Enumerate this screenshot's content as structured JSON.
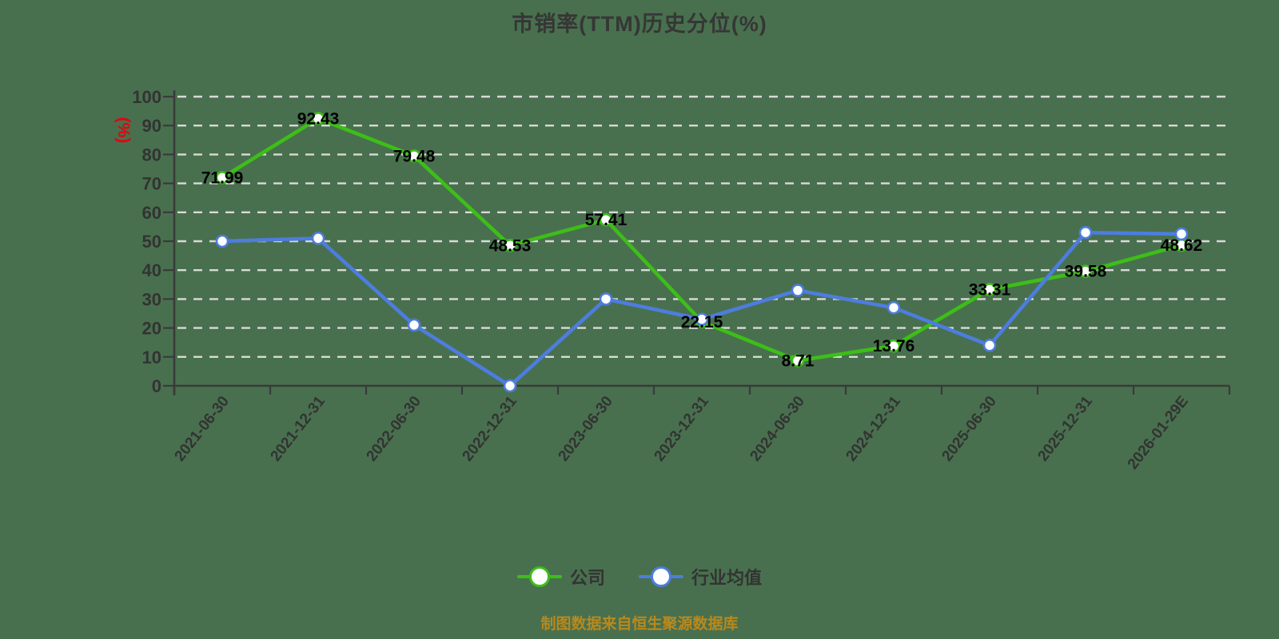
{
  "page": {
    "background": "#48704E"
  },
  "chart_data": {
    "type": "line",
    "title": "市销率(TTM)历史分位(%)",
    "ylabel": "(%)",
    "ylabel_color": "#e8000d",
    "footer": "制图数据来自恒生聚源数据库",
    "footer_color": "#b9891c",
    "categories": [
      "2021-06-30",
      "2021-12-31",
      "2022-06-30",
      "2022-12-31",
      "2023-06-30",
      "2023-12-31",
      "2024-06-30",
      "2024-12-31",
      "2025-06-30",
      "2025-12-31",
      "2026-01-29E"
    ],
    "series": [
      {
        "name": "公司",
        "color": "#3dbe18",
        "show_labels": true,
        "values": [
          71.99,
          92.43,
          79.48,
          48.53,
          57.41,
          22.15,
          8.71,
          13.76,
          33.31,
          39.58,
          48.62
        ]
      },
      {
        "name": "行业均值",
        "color": "#4d7dde",
        "show_labels": false,
        "values": [
          50,
          51,
          21,
          0,
          30,
          23,
          33,
          27,
          14,
          53,
          52.5
        ]
      }
    ],
    "ylim": [
      0,
      100
    ],
    "ytick_step": 10,
    "grid": {
      "style": "dashed",
      "color": "#d9d9d9"
    },
    "axis_color": "#3a3a3a",
    "tick_label_color": "#333333",
    "data_label_color": "#000000",
    "legend_position": "bottom"
  }
}
